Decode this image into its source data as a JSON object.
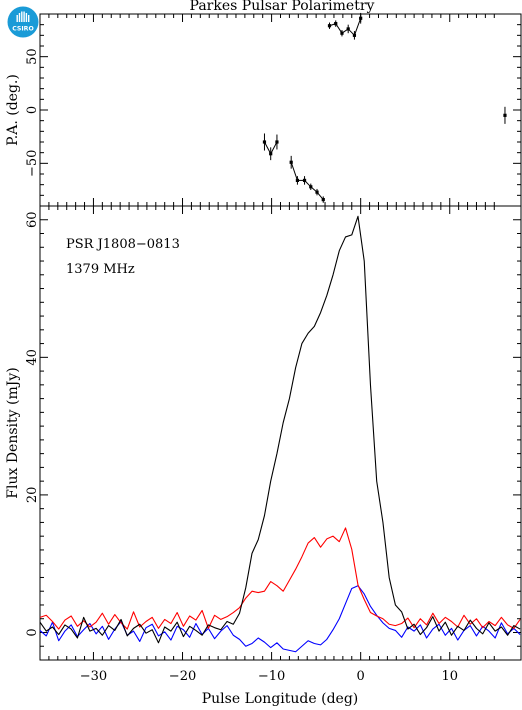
{
  "title": "Parkes Pulsar Polarimetry",
  "logo_text": "CSIRO",
  "colors": {
    "total": "#000000",
    "linear": "#ff0000",
    "circular": "#0000ff",
    "logo": "#1a9bd7"
  },
  "chart_data": [
    {
      "type": "scatter",
      "panel": "position-angle",
      "ylabel": "P.A. (deg.)",
      "xlim": [
        -36,
        18
      ],
      "ylim": [
        -90,
        90
      ],
      "yticks": [
        -50,
        0,
        50
      ],
      "grid": false,
      "points": [
        {
          "x": -10.8,
          "y": -30,
          "err": 8
        },
        {
          "x": -10.1,
          "y": -41,
          "err": 6
        },
        {
          "x": -9.4,
          "y": -30,
          "err": 7
        },
        {
          "x": -7.8,
          "y": -49,
          "err": 6
        },
        {
          "x": -7.1,
          "y": -66,
          "err": 4
        },
        {
          "x": -6.3,
          "y": -66,
          "err": 4
        },
        {
          "x": -5.6,
          "y": -72,
          "err": 3
        },
        {
          "x": -4.9,
          "y": -77,
          "err": 3
        },
        {
          "x": -4.2,
          "y": -84,
          "err": 3
        },
        {
          "x": -3.5,
          "y": 79,
          "err": 3
        },
        {
          "x": -2.8,
          "y": 81,
          "err": 3
        },
        {
          "x": -2.1,
          "y": 72,
          "err": 3
        },
        {
          "x": -1.4,
          "y": 76,
          "err": 4
        },
        {
          "x": -0.7,
          "y": 70,
          "err": 4
        },
        {
          "x": 0.0,
          "y": 86,
          "err": 5
        },
        {
          "x": 16.2,
          "y": -5,
          "err": 8
        }
      ]
    },
    {
      "type": "line",
      "panel": "profile",
      "xlabel": "Pulse Longitude (deg)",
      "ylabel": "Flux Density (mJy)",
      "xlim": [
        -36,
        18
      ],
      "ylim": [
        -4,
        62
      ],
      "xticks": [
        -30,
        -20,
        -10,
        0,
        10
      ],
      "yticks": [
        0,
        20,
        40,
        60
      ],
      "grid": false,
      "annotations": [
        "PSR J1808−0813",
        "1379 MHz"
      ],
      "x": [
        -36.0,
        -35.3,
        -34.6,
        -33.9,
        -33.2,
        -32.5,
        -31.8,
        -31.1,
        -30.4,
        -29.7,
        -29.0,
        -28.3,
        -27.6,
        -26.9,
        -26.2,
        -25.5,
        -24.8,
        -24.1,
        -23.4,
        -22.7,
        -22.0,
        -21.3,
        -20.6,
        -19.9,
        -19.2,
        -18.5,
        -17.8,
        -17.1,
        -16.4,
        -15.7,
        -15.0,
        -14.3,
        -13.6,
        -12.9,
        -12.2,
        -11.5,
        -10.8,
        -10.1,
        -9.4,
        -8.7,
        -8.0,
        -7.3,
        -6.6,
        -5.9,
        -5.2,
        -4.5,
        -3.8,
        -3.1,
        -2.4,
        -1.7,
        -1.0,
        -0.3,
        0.4,
        1.1,
        1.8,
        2.5,
        3.2,
        3.9,
        4.6,
        5.3,
        6.0,
        6.7,
        7.4,
        8.1,
        8.8,
        9.5,
        10.2,
        10.9,
        11.6,
        12.3,
        13.0,
        13.7,
        14.4,
        15.1,
        15.8,
        16.5,
        17.2,
        17.9
      ],
      "series": [
        {
          "key": "total",
          "values": [
            1.5,
            0.2,
            0.8,
            -0.3,
            1.1,
            0.5,
            -0.8,
            2.2,
            0.2,
            0.6,
            -0.4,
            1.0,
            0.3,
            1.9,
            -0.5,
            0.6,
            1.2,
            -0.1,
            0.4,
            -1.5,
            0.8,
            0.2,
            1.5,
            -0.6,
            0.9,
            0.3,
            -0.4,
            1.1,
            0.7,
            0.4,
            1.6,
            1.2,
            2.8,
            6.5,
            11.5,
            13.5,
            17.0,
            22.0,
            26.0,
            30.5,
            34.0,
            38.5,
            42.0,
            43.5,
            44.5,
            46.5,
            49.0,
            52.0,
            55.5,
            57.5,
            57.8,
            60.5,
            54.0,
            36.0,
            22.0,
            16.0,
            8.0,
            4.0,
            3.0,
            0.5,
            1.2,
            -0.3,
            0.7,
            2.3,
            0.2,
            1.5,
            -0.4,
            0.9,
            0.3,
            1.8,
            0.6,
            -0.2,
            1.4,
            0.2,
            0.8,
            -0.4,
            1.0,
            0.5
          ]
        },
        {
          "key": "linear",
          "values": [
            2.2,
            2.5,
            1.6,
            0.5,
            1.8,
            2.4,
            0.9,
            1.7,
            0.8,
            1.5,
            2.8,
            1.2,
            2.6,
            1.4,
            0.5,
            3.0,
            0.8,
            1.6,
            2.2,
            0.6,
            1.9,
            1.3,
            2.9,
            0.9,
            2.4,
            1.8,
            3.2,
            0.6,
            2.5,
            1.9,
            2.3,
            2.9,
            3.6,
            5.0,
            6.0,
            5.8,
            6.0,
            7.4,
            6.8,
            6.0,
            7.6,
            9.2,
            11.0,
            13.0,
            13.8,
            12.4,
            13.6,
            14.0,
            13.2,
            15.2,
            12.1,
            6.9,
            4.8,
            2.9,
            2.4,
            2.0,
            1.2,
            1.0,
            1.3,
            2.1,
            0.7,
            2.0,
            1.1,
            2.8,
            1.3,
            2.2,
            1.6,
            0.8,
            2.5,
            1.2,
            2.0,
            0.7,
            1.6,
            1.0,
            2.2,
            1.1,
            0.6,
            1.9
          ]
        },
        {
          "key": "circular",
          "values": [
            0.3,
            -0.5,
            1.5,
            -1.2,
            0.2,
            1.1,
            -0.6,
            0.4,
            1.3,
            -0.2,
            0.9,
            -1.0,
            0.5,
            1.6,
            -0.4,
            0.2,
            -1.3,
            0.7,
            1.2,
            -0.5,
            0.1,
            -1.1,
            0.9,
            0.4,
            -0.7,
            1.3,
            -0.3,
            0.6,
            -0.9,
            0.2,
            1.0,
            -0.4,
            -1.0,
            -2.0,
            -1.6,
            -0.8,
            -1.4,
            -2.2,
            -1.5,
            -2.4,
            -2.6,
            -2.8,
            -2.0,
            -1.2,
            -1.6,
            -1.8,
            -1.0,
            0.4,
            2.0,
            4.2,
            6.4,
            6.8,
            5.6,
            3.8,
            2.5,
            1.4,
            0.6,
            0.3,
            -0.7,
            0.8,
            0.2,
            1.1,
            -0.8,
            0.5,
            1.2,
            -0.4,
            0.6,
            -1.1,
            0.3,
            1.0,
            -0.5,
            0.9,
            0.2,
            -0.8,
            1.4,
            -0.2,
            0.6,
            -0.3
          ]
        }
      ]
    }
  ]
}
